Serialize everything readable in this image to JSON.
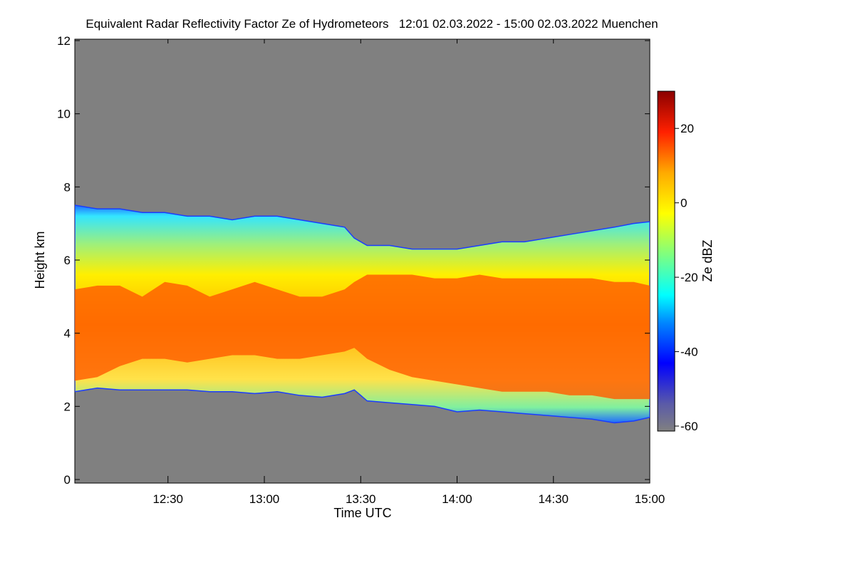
{
  "chart_data": {
    "type": "heatmap",
    "title": "Equivalent Radar Reflectivity Factor Ze of Hydrometeors   12:01 02.03.2022 - 15:00 02.03.2022 Muenchen",
    "xlabel": "Time UTC",
    "ylabel": "Height km",
    "colorbar_label": "Ze dBZ",
    "x_range_minutes_utc": [
      721,
      900
    ],
    "x_ticks": [
      {
        "label": "12:30",
        "value": 750
      },
      {
        "label": "13:00",
        "value": 780
      },
      {
        "label": "13:30",
        "value": 810
      },
      {
        "label": "14:00",
        "value": 840
      },
      {
        "label": "14:30",
        "value": 870
      },
      {
        "label": "15:00",
        "value": 900
      }
    ],
    "ylim": [
      0,
      12
    ],
    "y_ticks": [
      0,
      2,
      4,
      6,
      8,
      10,
      12
    ],
    "colorbar_range": [
      -60,
      30
    ],
    "colorbar_ticks": [
      -60,
      -40,
      -20,
      0,
      20
    ],
    "background_color": "#808080",
    "cloud_layer": {
      "note_units": "x in minutes UTC, heights in km",
      "x": [
        721,
        728,
        735,
        742,
        749,
        756,
        763,
        770,
        777,
        784,
        791,
        798,
        805,
        808,
        812,
        819,
        826,
        833,
        840,
        847,
        854,
        861,
        868,
        875,
        882,
        889,
        895,
        900
      ],
      "top": [
        7.5,
        7.4,
        7.4,
        7.3,
        7.3,
        7.2,
        7.2,
        7.1,
        7.2,
        7.2,
        7.1,
        7.0,
        6.9,
        6.6,
        6.4,
        6.4,
        6.3,
        6.3,
        6.3,
        6.4,
        6.5,
        6.5,
        6.6,
        6.7,
        6.8,
        6.9,
        7.0,
        7.05
      ],
      "base": [
        2.4,
        2.5,
        2.45,
        2.45,
        2.45,
        2.45,
        2.4,
        2.4,
        2.35,
        2.4,
        2.3,
        2.25,
        2.35,
        2.45,
        2.15,
        2.1,
        2.05,
        2.0,
        1.85,
        1.9,
        1.85,
        1.8,
        1.75,
        1.7,
        1.65,
        1.55,
        1.6,
        1.7
      ],
      "core_top": [
        5.2,
        5.3,
        5.3,
        5.0,
        5.4,
        5.3,
        5.0,
        5.2,
        5.4,
        5.2,
        5.0,
        5.0,
        5.2,
        5.4,
        5.6,
        5.6,
        5.6,
        5.5,
        5.5,
        5.6,
        5.5,
        5.5,
        5.5,
        5.5,
        5.5,
        5.4,
        5.4,
        5.3
      ],
      "core_base": [
        2.7,
        2.8,
        3.1,
        3.3,
        3.3,
        3.2,
        3.3,
        3.4,
        3.4,
        3.3,
        3.3,
        3.4,
        3.5,
        3.6,
        3.3,
        3.0,
        2.8,
        2.7,
        2.6,
        2.5,
        2.4,
        2.4,
        2.4,
        2.3,
        2.3,
        2.2,
        2.2,
        2.2
      ]
    }
  }
}
